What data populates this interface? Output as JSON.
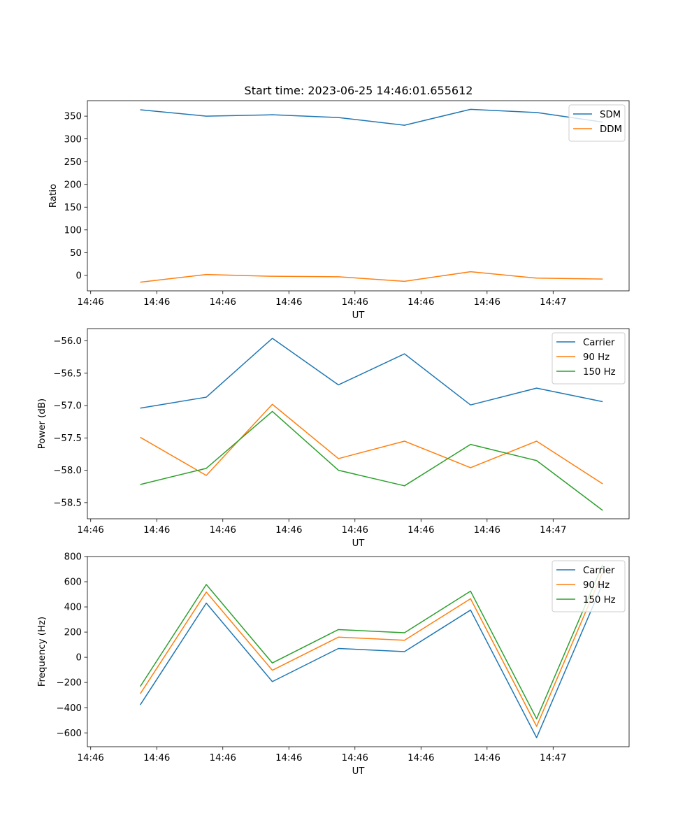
{
  "figure_title": "Start time: 2023-06-25 14:46:01.655612",
  "chart_data": [
    {
      "type": "line",
      "title": "Start time: 2023-06-25 14:46:01.655612",
      "xlabel": "UT",
      "ylabel": "Ratio",
      "x": [
        1,
        2,
        3,
        4,
        5,
        6,
        7,
        8
      ],
      "x_ticks": [
        {
          "at": 0.25,
          "label": "14:46"
        },
        {
          "at": 1.25,
          "label": "14:46"
        },
        {
          "at": 2.25,
          "label": "14:46"
        },
        {
          "at": 3.25,
          "label": "14:46"
        },
        {
          "at": 4.25,
          "label": "14:46"
        },
        {
          "at": 5.25,
          "label": "14:46"
        },
        {
          "at": 6.25,
          "label": "14:46"
        },
        {
          "at": 7.25,
          "label": "14:47"
        }
      ],
      "xlim": [
        0.2,
        8.4
      ],
      "ylim": [
        -34,
        384
      ],
      "yticks": [
        0,
        50,
        100,
        150,
        200,
        250,
        300,
        350
      ],
      "ytick_labels": [
        "0",
        "50",
        "100",
        "150",
        "200",
        "250",
        "300",
        "350"
      ],
      "legend_position": "upper right",
      "series": [
        {
          "name": "SDM",
          "color": "#1f77b4",
          "values": [
            364,
            350,
            353,
            347,
            330,
            365,
            358,
            337
          ]
        },
        {
          "name": "DDM",
          "color": "#ff7f0e",
          "values": [
            -15,
            2,
            -2,
            -3,
            -13,
            8,
            -6,
            -8
          ]
        }
      ]
    },
    {
      "type": "line",
      "xlabel": "UT",
      "ylabel": "Power (dB)",
      "x": [
        1,
        2,
        3,
        4,
        5,
        6,
        7,
        8
      ],
      "x_ticks": [
        {
          "at": 0.25,
          "label": "14:46"
        },
        {
          "at": 1.25,
          "label": "14:46"
        },
        {
          "at": 2.25,
          "label": "14:46"
        },
        {
          "at": 3.25,
          "label": "14:46"
        },
        {
          "at": 4.25,
          "label": "14:46"
        },
        {
          "at": 5.25,
          "label": "14:46"
        },
        {
          "at": 6.25,
          "label": "14:46"
        },
        {
          "at": 7.25,
          "label": "14:47"
        }
      ],
      "xlim": [
        0.2,
        8.4
      ],
      "ylim": [
        -58.75,
        -55.81
      ],
      "yticks": [
        -56.0,
        -56.5,
        -57.0,
        -57.5,
        -58.0,
        -58.5
      ],
      "ytick_labels": [
        "−56.0",
        "−56.5",
        "−57.0",
        "−57.5",
        "−58.0",
        "−58.5"
      ],
      "legend_position": "upper right",
      "series": [
        {
          "name": "Carrier",
          "color": "#1f77b4",
          "values": [
            -57.04,
            -56.87,
            -55.96,
            -56.68,
            -56.2,
            -56.99,
            -56.73,
            -56.94
          ]
        },
        {
          "name": "90 Hz",
          "color": "#ff7f0e",
          "values": [
            -57.49,
            -58.08,
            -56.98,
            -57.82,
            -57.55,
            -57.96,
            -57.55,
            -58.21
          ]
        },
        {
          "name": "150 Hz",
          "color": "#2ca02c",
          "values": [
            -58.22,
            -57.97,
            -57.09,
            -58.0,
            -58.24,
            -57.6,
            -57.85,
            -58.62
          ]
        }
      ]
    },
    {
      "type": "line",
      "xlabel": "UT",
      "ylabel": "Frequency (Hz)",
      "x": [
        1,
        2,
        3,
        4,
        5,
        6,
        7,
        8
      ],
      "x_ticks": [
        {
          "at": 0.25,
          "label": "14:46"
        },
        {
          "at": 1.25,
          "label": "14:46"
        },
        {
          "at": 2.25,
          "label": "14:46"
        },
        {
          "at": 3.25,
          "label": "14:46"
        },
        {
          "at": 4.25,
          "label": "14:46"
        },
        {
          "at": 5.25,
          "label": "14:46"
        },
        {
          "at": 6.25,
          "label": "14:46"
        },
        {
          "at": 7.25,
          "label": "14:47"
        }
      ],
      "xlim": [
        0.2,
        8.4
      ],
      "ylim": [
        -710,
        800
      ],
      "yticks": [
        800,
        600,
        400,
        200,
        0,
        -200,
        -400,
        -600
      ],
      "ytick_labels": [
        "800",
        "600",
        "400",
        "200",
        "0",
        "−200",
        "−400",
        "−600"
      ],
      "legend_position": "upper right",
      "series": [
        {
          "name": "Carrier",
          "color": "#1f77b4",
          "values": [
            -378,
            430,
            -193,
            70,
            45,
            375,
            -638,
            585
          ]
        },
        {
          "name": "90 Hz",
          "color": "#ff7f0e",
          "values": [
            -290,
            518,
            -103,
            160,
            135,
            465,
            -548,
            675
          ]
        },
        {
          "name": "150 Hz",
          "color": "#2ca02c",
          "values": [
            -232,
            578,
            -45,
            220,
            195,
            525,
            -488,
            735
          ]
        }
      ]
    }
  ]
}
